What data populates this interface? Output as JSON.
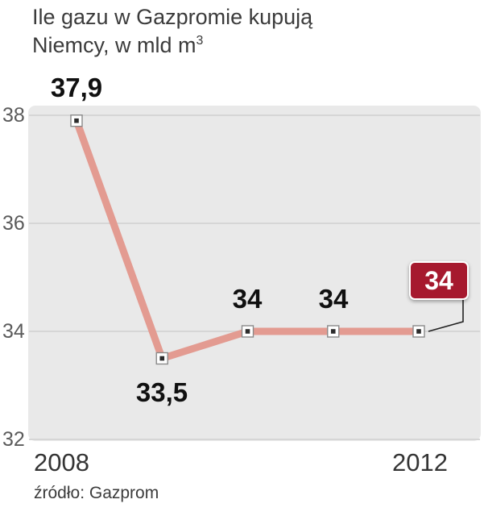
{
  "title": {
    "line1": "Ile gazu w Gazpromie kupują",
    "line2": "Niemcy, w mld m",
    "superscript": "3"
  },
  "source": "źródło: Gazprom",
  "chart_data": {
    "type": "line",
    "x": [
      2008,
      2009,
      2010,
      2011,
      2012
    ],
    "values": [
      37.9,
      33.5,
      34,
      34,
      34
    ],
    "point_labels": [
      "37,9",
      "33,5",
      "34",
      "34",
      "34"
    ],
    "yticks": [
      38,
      36,
      34,
      32
    ],
    "ylim": [
      32,
      38
    ],
    "xtick_labels": [
      "2008",
      "2012"
    ],
    "highlight_last_value": "34",
    "grid": true,
    "legend": "none",
    "colors": {
      "line": "#e39b91",
      "plot_bg": "#e9e9e9",
      "grid": "#d6d6d6",
      "marker_fill": "#ffffff",
      "marker_stroke": "#8a8a8a",
      "marker_dot": "#2b2b2b",
      "badge_bg": "#a6192e",
      "badge_text": "#ffffff",
      "connector": "#222222"
    }
  }
}
